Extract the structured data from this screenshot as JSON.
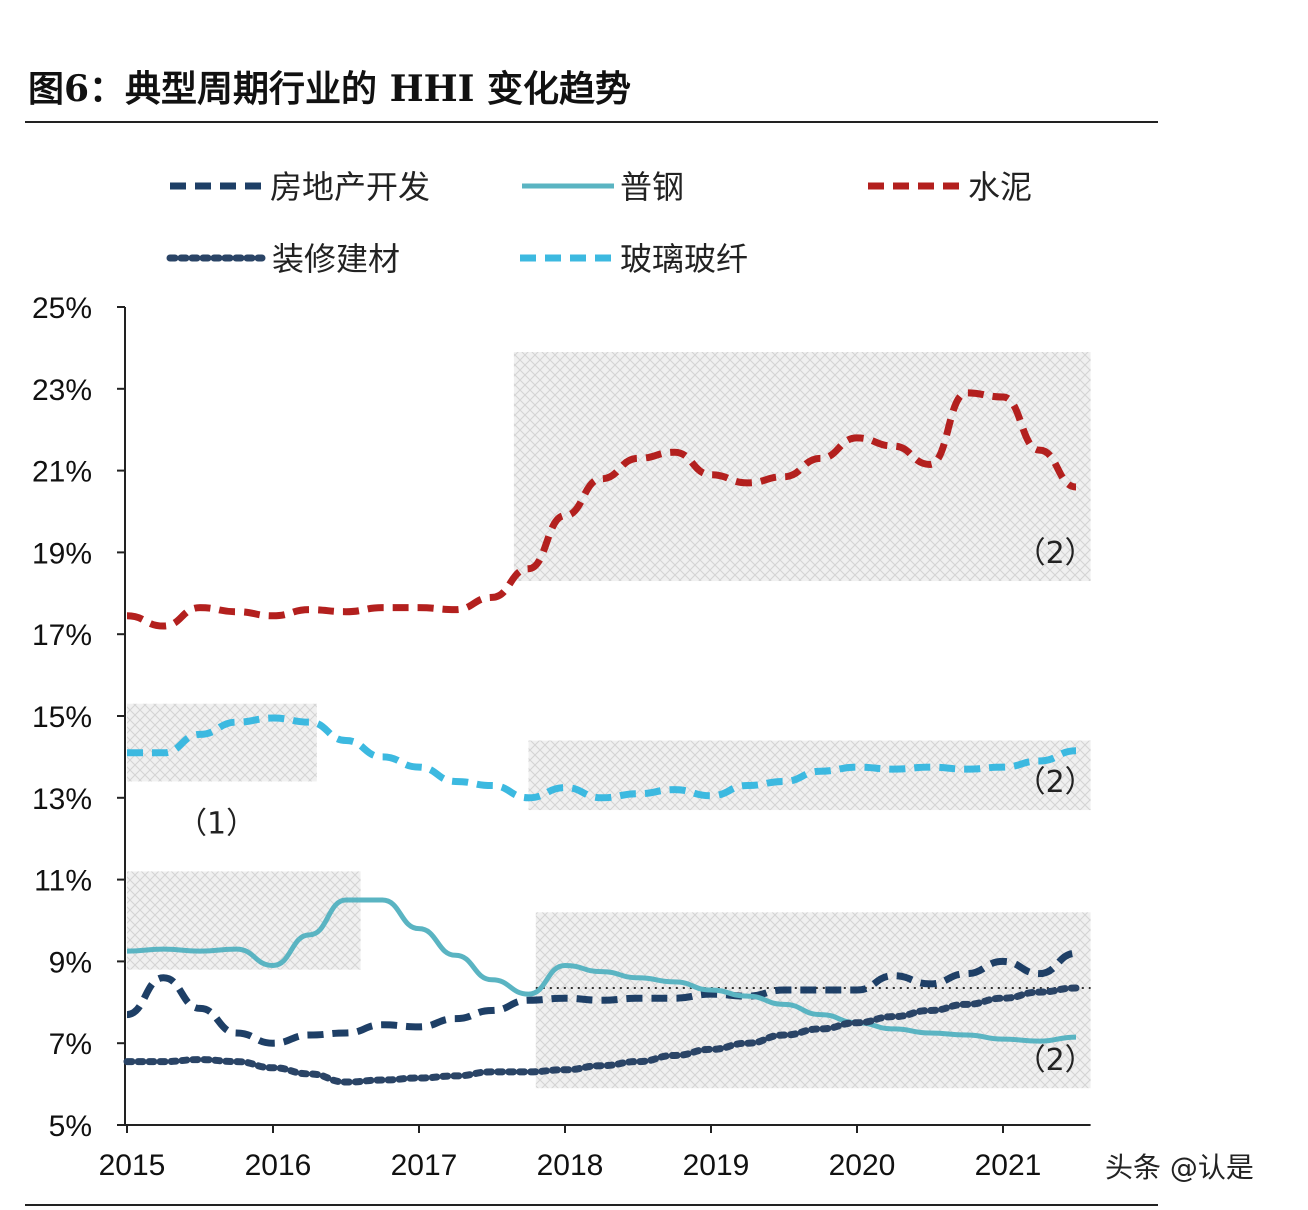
{
  "title": "图6：典型周期行业的 HHI 变化趋势",
  "watermark": "头条 @认是",
  "chart_data": {
    "type": "line",
    "title": "图6：典型周期行业的 HHI 变化趋势",
    "xlabel": "",
    "ylabel": "",
    "xlim": [
      2015,
      2021.6
    ],
    "ylim": [
      5,
      25
    ],
    "x_ticks": [
      "2015",
      "2016",
      "2017",
      "2018",
      "2019",
      "2020",
      "2021"
    ],
    "y_ticks": [
      "5%",
      "7%",
      "9%",
      "11%",
      "13%",
      "15%",
      "17%",
      "19%",
      "21%",
      "23%",
      "25%"
    ],
    "grid": false,
    "legend_position": "top",
    "x": [
      2015,
      2015.25,
      2015.5,
      2015.75,
      2016,
      2016.25,
      2016.5,
      2016.75,
      2017,
      2017.25,
      2017.5,
      2017.75,
      2018,
      2018.25,
      2018.5,
      2018.75,
      2019,
      2019.25,
      2019.5,
      2019.75,
      2020,
      2020.25,
      2020.5,
      2020.75,
      2021,
      2021.25,
      2021.5
    ],
    "series": [
      {
        "name": "房地产开发",
        "style": "dashed",
        "color": "#1e3f66",
        "values": [
          7.7,
          8.6,
          7.85,
          7.25,
          7.0,
          7.2,
          7.25,
          7.45,
          7.4,
          7.6,
          7.8,
          8.05,
          8.1,
          8.05,
          8.1,
          8.1,
          8.2,
          8.15,
          8.3,
          8.3,
          8.3,
          8.65,
          8.45,
          8.7,
          9.0,
          8.7,
          9.2
        ]
      },
      {
        "name": "普钢",
        "style": "solid",
        "color": "#5ab4c2",
        "values": [
          9.25,
          9.3,
          9.25,
          9.3,
          8.9,
          9.65,
          10.5,
          10.5,
          9.8,
          9.15,
          8.55,
          8.2,
          8.9,
          8.75,
          8.6,
          8.5,
          8.3,
          8.15,
          7.95,
          7.7,
          7.5,
          7.35,
          7.25,
          7.2,
          7.1,
          7.05,
          7.15
        ]
      },
      {
        "name": "水泥",
        "style": "dashed",
        "color": "#b3201e",
        "values": [
          17.45,
          17.2,
          17.65,
          17.55,
          17.45,
          17.6,
          17.55,
          17.65,
          17.65,
          17.6,
          17.9,
          18.6,
          19.9,
          20.8,
          21.3,
          21.45,
          20.9,
          20.7,
          20.85,
          21.3,
          21.8,
          21.6,
          21.15,
          22.9,
          22.8,
          21.5,
          20.6
        ]
      },
      {
        "name": "装修建材",
        "style": "dotted",
        "color": "#2a4466",
        "values": [
          6.55,
          6.55,
          6.6,
          6.55,
          6.4,
          6.25,
          6.05,
          6.1,
          6.15,
          6.2,
          6.3,
          6.3,
          6.35,
          6.45,
          6.55,
          6.7,
          6.85,
          7.0,
          7.2,
          7.35,
          7.5,
          7.65,
          7.8,
          7.95,
          8.1,
          8.25,
          8.35
        ]
      },
      {
        "name": "玻璃玻纤",
        "style": "dashed",
        "color": "#3cb9e0",
        "values": [
          14.1,
          14.1,
          14.55,
          14.85,
          14.95,
          14.85,
          14.4,
          14.0,
          13.75,
          13.4,
          13.3,
          13.0,
          13.25,
          13.0,
          13.1,
          13.2,
          13.05,
          13.3,
          13.4,
          13.65,
          13.75,
          13.7,
          13.75,
          13.7,
          13.75,
          13.9,
          14.15
        ]
      }
    ],
    "reference_line": {
      "y": 8.35,
      "x_range": [
        2017.8,
        2021.6
      ]
    },
    "shaded_regions": [
      {
        "label": "（2）",
        "x_range": [
          2017.65,
          2021.6
        ],
        "y_range": [
          18.3,
          23.9
        ]
      },
      {
        "label": "（1）",
        "x_range": [
          2015,
          2016.3
        ],
        "y_range": [
          13.4,
          15.3
        ]
      },
      {
        "label": "（2）",
        "x_range": [
          2017.75,
          2021.6
        ],
        "y_range": [
          12.7,
          14.4
        ]
      },
      {
        "label": "",
        "x_range": [
          2015,
          2016.6
        ],
        "y_range": [
          8.8,
          11.2
        ]
      },
      {
        "label": "（2）",
        "x_range": [
          2017.8,
          2021.6
        ],
        "y_range": [
          5.9,
          10.2
        ]
      }
    ]
  }
}
